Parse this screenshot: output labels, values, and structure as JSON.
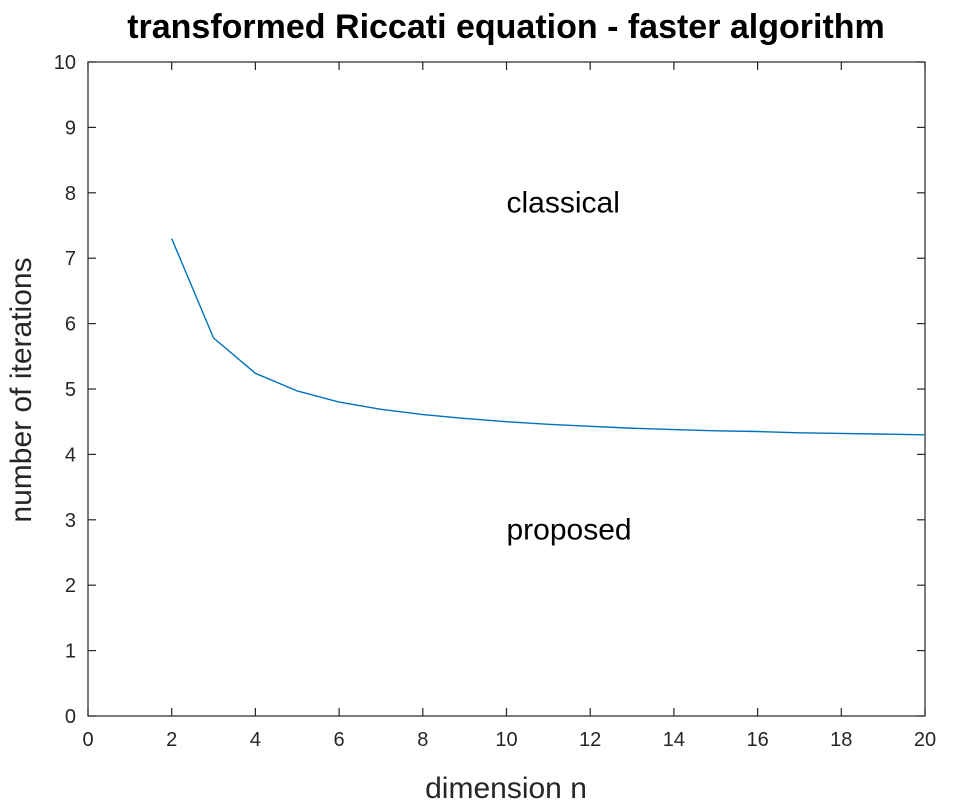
{
  "chart_data": {
    "type": "line",
    "title": "transformed Riccati equation - faster algorithm",
    "xlabel": "dimension n",
    "ylabel": "number of iterations",
    "xlim": [
      0,
      20
    ],
    "ylim": [
      0,
      10
    ],
    "xticks": [
      0,
      2,
      4,
      6,
      8,
      10,
      12,
      14,
      16,
      18,
      20
    ],
    "yticks": [
      0,
      1,
      2,
      3,
      4,
      5,
      6,
      7,
      8,
      9,
      10
    ],
    "grid": false,
    "series": [
      {
        "color": "#0072BD",
        "x": [
          2,
          3,
          4,
          5,
          6,
          7,
          8,
          9,
          10,
          11,
          12,
          13,
          14,
          15,
          16,
          17,
          18,
          19,
          20
        ],
        "y": [
          7.3,
          5.78,
          5.24,
          4.97,
          4.8,
          4.69,
          4.61,
          4.55,
          4.5,
          4.46,
          4.43,
          4.4,
          4.38,
          4.36,
          4.35,
          4.33,
          4.32,
          4.31,
          4.3
        ]
      }
    ],
    "annotations": [
      {
        "text": "classical",
        "x": 10,
        "y": 7.85
      },
      {
        "text": "proposed",
        "x": 10,
        "y": 2.85
      }
    ]
  }
}
